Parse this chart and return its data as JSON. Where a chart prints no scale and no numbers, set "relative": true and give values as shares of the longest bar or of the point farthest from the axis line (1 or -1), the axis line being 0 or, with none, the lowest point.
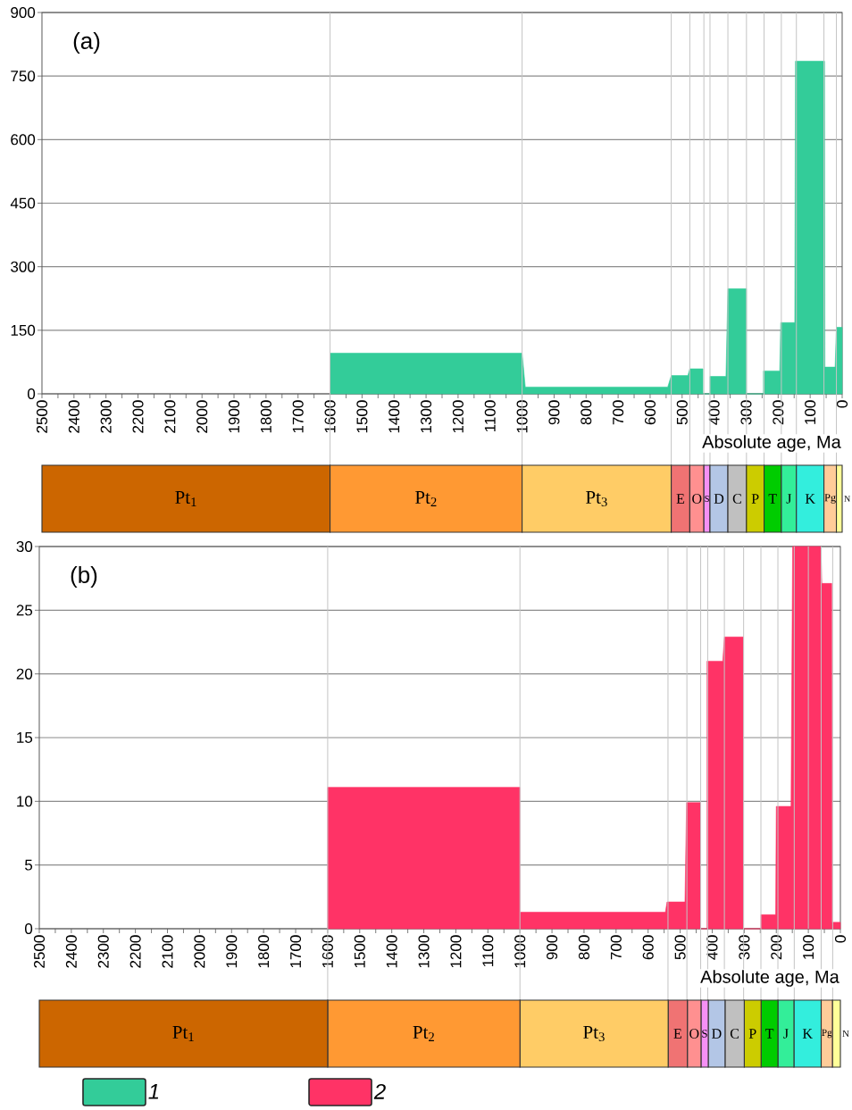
{
  "chart_data": [
    {
      "type": "area",
      "title": "(a)",
      "xlabel": "Absolute age, Ma",
      "x": [
        1600,
        1600,
        1000,
        990,
        545,
        534,
        482,
        476,
        435,
        435,
        413,
        413,
        363,
        357,
        299,
        299,
        246,
        246,
        195,
        192,
        148,
        146,
        55,
        54,
        22,
        18,
        0,
        0
      ],
      "series": [
        {
          "name": "1",
          "color": "#33cc99",
          "values": [
            0,
            96,
            96,
            16,
            16,
            43,
            43,
            59,
            59,
            0,
            0,
            41,
            41,
            248,
            248,
            0,
            0,
            54,
            54,
            168,
            168,
            785,
            785,
            63,
            63,
            157,
            157,
            0
          ]
        }
      ],
      "xlim": [
        2500,
        0
      ],
      "ylim": [
        0,
        900
      ],
      "xticks": [
        2500,
        {
          "value": 2450,
          "label": null
        },
        2400,
        {
          "value": 2350,
          "label": null
        },
        2300,
        {
          "value": 2250,
          "label": null
        },
        2200,
        {
          "value": 2150,
          "label": null
        },
        2100,
        {
          "value": 2050,
          "label": null
        },
        2000,
        {
          "value": 1950,
          "label": null
        },
        1900,
        {
          "value": 1850,
          "label": null
        },
        1800,
        {
          "value": 1750,
          "label": null
        },
        1700,
        {
          "value": 1650,
          "label": null
        },
        1600,
        {
          "value": 1550,
          "label": null
        },
        1500,
        {
          "value": 1450,
          "label": null
        },
        1400,
        {
          "value": 1350,
          "label": null
        },
        1300,
        {
          "value": 1250,
          "label": null
        },
        1200,
        {
          "value": 1150,
          "label": null
        },
        1100,
        {
          "value": 1050,
          "label": null
        },
        1000,
        {
          "value": 950,
          "label": null
        },
        900,
        {
          "value": 850,
          "label": null
        },
        800,
        {
          "value": 750,
          "label": null
        },
        700,
        {
          "value": 650,
          "label": null
        },
        600,
        {
          "value": 550,
          "label": null
        },
        500,
        {
          "value": 450,
          "label": null
        },
        400,
        {
          "value": 350,
          "label": null
        },
        300,
        {
          "value": 250,
          "label": null
        },
        200,
        {
          "value": 150,
          "label": null
        },
        100,
        {
          "value": 50,
          "label": null
        },
        0
      ],
      "yticks": [
        0,
        150,
        300,
        450,
        600,
        750,
        900
      ],
      "grid": "y",
      "legend": "bottom",
      "ref_lines": [
        {
          "axis": "x",
          "value": 1600
        },
        {
          "axis": "x",
          "value": 1000
        },
        {
          "axis": "x",
          "value": 534
        },
        {
          "axis": "x",
          "value": 476
        },
        {
          "axis": "x",
          "value": 432
        },
        {
          "axis": "x",
          "value": 413
        },
        {
          "axis": "x",
          "value": 357
        },
        {
          "axis": "x",
          "value": 299
        },
        {
          "axis": "x",
          "value": 244
        },
        {
          "axis": "x",
          "value": 190
        },
        {
          "axis": "x",
          "value": 143
        },
        {
          "axis": "x",
          "value": 57
        },
        {
          "axis": "x",
          "value": 18
        }
      ]
    },
    {
      "type": "bar",
      "orientation": "horizontal",
      "stacked": true,
      "categories": [
        null
      ],
      "xlim": [
        2500,
        0
      ],
      "tick_labels": false,
      "series": [
        {
          "name": "N",
          "color": "#ffff99",
          "values": [
            18
          ]
        },
        {
          "name": "Pg",
          "color": "#ffcc99",
          "values": [
            39
          ]
        },
        {
          "name": "K",
          "color": "#33eedd",
          "values": [
            86
          ]
        },
        {
          "name": "J",
          "color": "#33ee99",
          "values": [
            47
          ]
        },
        {
          "name": "T",
          "color": "#00cc00",
          "values": [
            54
          ]
        },
        {
          "name": "P",
          "color": "#cccc00",
          "values": [
            55
          ]
        },
        {
          "name": "C",
          "color": "#c0c0c0",
          "values": [
            58
          ]
        },
        {
          "name": "D",
          "color": "#b3c6e6",
          "values": [
            56
          ]
        },
        {
          "name": "S",
          "color": "#f590f5",
          "values": [
            19
          ]
        },
        {
          "name": "O",
          "color": "#ff9090",
          "values": [
            44
          ]
        },
        {
          "name": "E",
          "color": "#f07373",
          "values": [
            58
          ]
        },
        {
          "name": "Pt$_{3}$",
          "color": "#ffcc66",
          "values": [
            466
          ]
        },
        {
          "name": "Pt$_{2}$",
          "color": "#ff9933",
          "values": [
            600
          ]
        },
        {
          "name": "Pt$_{1}$",
          "color": "#cc6600",
          "values": [
            900
          ]
        }
      ]
    },
    {
      "type": "area",
      "title": "(b)",
      "xlabel": "Absolute age, Ma",
      "x": [
        1600,
        1600,
        1000,
        1000,
        546,
        541,
        485,
        480,
        437,
        437,
        416,
        416,
        367,
        362,
        303,
        303,
        248,
        248,
        202,
        200,
        154,
        149,
        61,
        58,
        27,
        26,
        0,
        0
      ],
      "series": [
        {
          "name": "2",
          "color": "#ff3366",
          "values": [
            0,
            11.1,
            11.1,
            1.3,
            1.3,
            2.1,
            2.1,
            9.9,
            9.9,
            0,
            0,
            21,
            21,
            22.9,
            22.9,
            0,
            0,
            1.1,
            1.1,
            9.6,
            9.6,
            30,
            30,
            27.1,
            27.1,
            0.5,
            0.5,
            0
          ]
        }
      ],
      "xlim": [
        2500,
        0
      ],
      "ylim": [
        0,
        30
      ],
      "xticks": [
        2500,
        {
          "value": 2450,
          "label": null
        },
        2400,
        {
          "value": 2350,
          "label": null
        },
        2300,
        {
          "value": 2250,
          "label": null
        },
        2200,
        {
          "value": 2150,
          "label": null
        },
        2100,
        {
          "value": 2050,
          "label": null
        },
        2000,
        {
          "value": 1950,
          "label": null
        },
        1900,
        {
          "value": 1850,
          "label": null
        },
        1800,
        {
          "value": 1750,
          "label": null
        },
        1700,
        {
          "value": 1650,
          "label": null
        },
        1600,
        {
          "value": 1550,
          "label": null
        },
        1500,
        {
          "value": 1450,
          "label": null
        },
        1400,
        {
          "value": 1350,
          "label": null
        },
        1300,
        {
          "value": 1250,
          "label": null
        },
        1200,
        {
          "value": 1150,
          "label": null
        },
        1100,
        {
          "value": 1050,
          "label": null
        },
        1000,
        {
          "value": 950,
          "label": null
        },
        900,
        {
          "value": 850,
          "label": null
        },
        800,
        {
          "value": 750,
          "label": null
        },
        700,
        {
          "value": 650,
          "label": null
        },
        600,
        {
          "value": 550,
          "label": null
        },
        500,
        {
          "value": 450,
          "label": null
        },
        400,
        {
          "value": 350,
          "label": null
        },
        300,
        {
          "value": 250,
          "label": null
        },
        200,
        {
          "value": 150,
          "label": null
        },
        100,
        {
          "value": 50,
          "label": null
        },
        0
      ],
      "yticks": [
        0,
        5,
        10,
        15,
        20,
        25,
        30
      ],
      "grid": "y",
      "legend": "bottom",
      "ref_lines": [
        {
          "axis": "x",
          "value": 1600
        },
        {
          "axis": "x",
          "value": 1000
        },
        {
          "axis": "x",
          "value": 538
        },
        {
          "axis": "x",
          "value": 479
        },
        {
          "axis": "x",
          "value": 436
        },
        {
          "axis": "x",
          "value": 414
        },
        {
          "axis": "x",
          "value": 362
        },
        {
          "axis": "x",
          "value": 302
        },
        {
          "axis": "x",
          "value": 248
        },
        {
          "axis": "x",
          "value": 195
        },
        {
          "axis": "x",
          "value": 144
        },
        {
          "axis": "x",
          "value": 100
        },
        {
          "axis": "x",
          "value": 60
        },
        {
          "axis": "x",
          "value": 24
        }
      ]
    },
    {
      "type": "bar",
      "orientation": "horizontal",
      "stacked": true,
      "relative": true,
      "categories": [
        null
      ],
      "tick_labels": false,
      "series": [
        {
          "name": "Pt$_{1}$",
          "color": "#cc6600",
          "values": [
            0.36
          ]
        },
        {
          "name": "Pt$_{2}$",
          "color": "#ff9933",
          "values": [
            0.24
          ]
        },
        {
          "name": "Pt$_{3}$",
          "color": "#ffcc66",
          "values": [
            0.185
          ]
        },
        {
          "name": "E",
          "color": "#f07373",
          "values": [
            0.024
          ]
        },
        {
          "name": "O",
          "color": "#ff9090",
          "values": [
            0.017
          ]
        },
        {
          "name": "S",
          "color": "#f590f5",
          "values": [
            0.009
          ]
        },
        {
          "name": "D",
          "color": "#b3c6e6",
          "values": [
            0.021
          ]
        },
        {
          "name": "C",
          "color": "#c0c0c0",
          "values": [
            0.024
          ]
        },
        {
          "name": "P",
          "color": "#cccc00",
          "values": [
            0.021
          ]
        },
        {
          "name": "T",
          "color": "#00cc00",
          "values": [
            0.021
          ]
        },
        {
          "name": "J",
          "color": "#33ee99",
          "values": [
            0.02
          ]
        },
        {
          "name": "K",
          "color": "#33eedd",
          "values": [
            0.034
          ]
        },
        {
          "name": "Pg",
          "color": "#ffcc99",
          "values": [
            0.014
          ]
        },
        {
          "name": "N",
          "color": "#ffff99",
          "values": [
            0.01
          ]
        }
      ]
    }
  ]
}
